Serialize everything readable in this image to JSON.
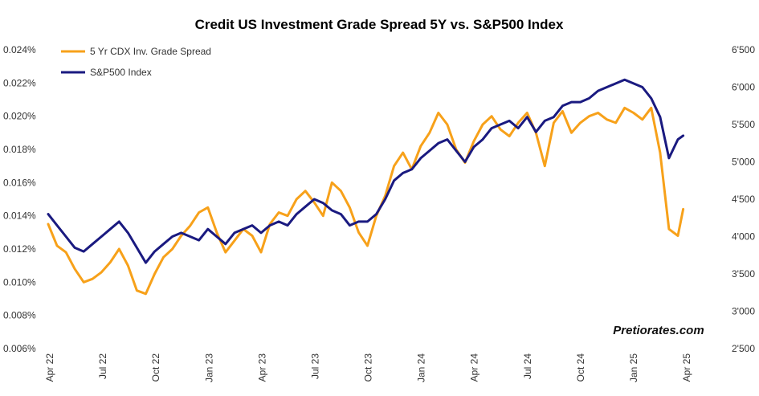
{
  "chart_data": {
    "type": "line",
    "title": "Credit US Investment Grade Spread 5Y vs. S&P500 Index",
    "watermark": "Pretiorates.com",
    "legend_position": "top-left",
    "grid": false,
    "x_tick_labels": [
      "Apr 22",
      "Jul 22",
      "Oct 22",
      "Jan 23",
      "Apr 23",
      "Jul 23",
      "Oct 23",
      "Jan 24",
      "Apr 24",
      "Jul 24",
      "Oct 24",
      "Jan 25",
      "Apr 25"
    ],
    "x_range": [
      0,
      36
    ],
    "y_left": {
      "range": [
        0.006,
        0.024
      ],
      "tick_labels": [
        "0.006%",
        "0.008%",
        "0.010%",
        "0.012%",
        "0.014%",
        "0.016%",
        "0.018%",
        "0.020%",
        "0.022%",
        "0.024%"
      ]
    },
    "y_right": {
      "range": [
        2500,
        6500
      ],
      "tick_labels": [
        "2'500",
        "3'000",
        "3'500",
        "4'000",
        "4'500",
        "5'000",
        "5'500",
        "6'000",
        "6'500"
      ]
    },
    "series": [
      {
        "name": "5 Yr CDX Inv. Grade Spread",
        "axis": "left",
        "color": "#F7A11A",
        "x": [
          0,
          0.5,
          1,
          1.5,
          2,
          2.5,
          3,
          3.5,
          4,
          4.5,
          5,
          5.5,
          6,
          6.5,
          7,
          7.5,
          8,
          8.5,
          9,
          9.5,
          10,
          10.5,
          11,
          11.5,
          12,
          12.5,
          13,
          13.5,
          14,
          14.5,
          15,
          15.5,
          16,
          16.5,
          17,
          17.5,
          18,
          18.5,
          19,
          19.5,
          20,
          20.5,
          21,
          21.5,
          22,
          22.5,
          23,
          23.5,
          24,
          24.5,
          25,
          25.5,
          26,
          26.5,
          27,
          27.5,
          28,
          28.5,
          29,
          29.5,
          30,
          30.5,
          31,
          31.5,
          32,
          32.5,
          33,
          33.5,
          34,
          34.5,
          35,
          35.5,
          35.8
        ],
        "values": [
          0.0135,
          0.0122,
          0.0118,
          0.0108,
          0.01,
          0.0102,
          0.0106,
          0.0112,
          0.012,
          0.011,
          0.0095,
          0.0093,
          0.0105,
          0.0115,
          0.012,
          0.0128,
          0.0134,
          0.0142,
          0.0145,
          0.013,
          0.0118,
          0.0125,
          0.0132,
          0.0128,
          0.0118,
          0.0135,
          0.0142,
          0.014,
          0.015,
          0.0155,
          0.0148,
          0.014,
          0.016,
          0.0155,
          0.0145,
          0.013,
          0.0122,
          0.014,
          0.0152,
          0.017,
          0.0178,
          0.0168,
          0.0182,
          0.019,
          0.0202,
          0.0195,
          0.018,
          0.0172,
          0.0185,
          0.0195,
          0.02,
          0.0192,
          0.0188,
          0.0196,
          0.0202,
          0.019,
          0.017,
          0.0196,
          0.0203,
          0.019,
          0.0196,
          0.02,
          0.0202,
          0.0198,
          0.0196,
          0.0205,
          0.0202,
          0.0198,
          0.0205,
          0.0178,
          0.0132,
          0.0128,
          0.0144
        ]
      },
      {
        "name": "S&P500 Index",
        "axis": "right",
        "color": "#1A1A80",
        "x": [
          0,
          0.5,
          1,
          1.5,
          2,
          2.5,
          3,
          3.5,
          4,
          4.5,
          5,
          5.5,
          6,
          6.5,
          7,
          7.5,
          8,
          8.5,
          9,
          9.5,
          10,
          10.5,
          11,
          11.5,
          12,
          12.5,
          13,
          13.5,
          14,
          14.5,
          15,
          15.5,
          16,
          16.5,
          17,
          17.5,
          18,
          18.5,
          19,
          19.5,
          20,
          20.5,
          21,
          21.5,
          22,
          22.5,
          23,
          23.5,
          24,
          24.5,
          25,
          25.5,
          26,
          26.5,
          27,
          27.5,
          28,
          28.5,
          29,
          29.5,
          30,
          30.5,
          31,
          31.5,
          32,
          32.5,
          33,
          33.5,
          34,
          34.5,
          35,
          35.5,
          35.8
        ],
        "values": [
          4300,
          4150,
          4000,
          3850,
          3800,
          3900,
          4000,
          4100,
          4200,
          4050,
          3850,
          3650,
          3800,
          3900,
          4000,
          4050,
          4000,
          3950,
          4100,
          4000,
          3900,
          4050,
          4100,
          4150,
          4050,
          4150,
          4200,
          4150,
          4300,
          4400,
          4500,
          4450,
          4350,
          4300,
          4150,
          4200,
          4200,
          4300,
          4500,
          4750,
          4850,
          4900,
          5050,
          5150,
          5250,
          5300,
          5150,
          5000,
          5200,
          5300,
          5450,
          5500,
          5550,
          5450,
          5600,
          5400,
          5550,
          5600,
          5750,
          5800,
          5800,
          5850,
          5950,
          6000,
          6050,
          6100,
          6050,
          6000,
          5850,
          5600,
          5050,
          5300,
          5350
        ]
      }
    ]
  }
}
